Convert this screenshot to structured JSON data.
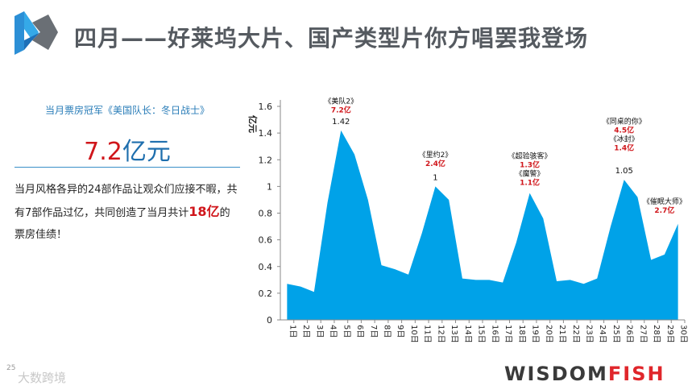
{
  "header": {
    "title": "四月——好莱坞大片、国产类型片你方唱罢我登场",
    "logo_icon": "w-chevron-logo-icon"
  },
  "colors": {
    "area": "#00a2e8",
    "accent_red": "#d0161b",
    "title_gray": "#555a60"
  },
  "summary": {
    "champion_label": "当月票房冠军《美国队长：冬日战士》",
    "champion_value": "7.2",
    "champion_unit": "亿元",
    "desc_part1": "当月风格各异的24部作品让观众们应接不暇，共有7部作品过亿，共同创造了当月共计",
    "desc_highlight": "18亿",
    "desc_part2": "的票房佳绩！"
  },
  "chart_data": {
    "type": "area",
    "ylabel": "亿元",
    "ylim": [
      0,
      1.6
    ],
    "yticks": [
      "0",
      "0.2",
      "0.4",
      "0.6",
      "0.8",
      "1",
      "1.2",
      "1.4",
      "1.6"
    ],
    "x": [
      "1日",
      "2日",
      "3日",
      "4日",
      "5日",
      "6日",
      "7日",
      "8日",
      "9日",
      "10日",
      "11日",
      "12日",
      "13日",
      "14日",
      "15日",
      "16日",
      "17日",
      "18日",
      "19日",
      "20日",
      "21日",
      "22日",
      "23日",
      "24日",
      "25日",
      "26日",
      "27日",
      "28日",
      "29日",
      "30日"
    ],
    "values": [
      0.27,
      0.25,
      0.21,
      0.88,
      1.42,
      1.24,
      0.9,
      0.41,
      0.38,
      0.34,
      0.65,
      1.0,
      0.9,
      0.31,
      0.3,
      0.3,
      0.28,
      0.58,
      0.95,
      0.76,
      0.29,
      0.3,
      0.27,
      0.31,
      0.7,
      1.05,
      0.92,
      0.45,
      0.49,
      0.72
    ],
    "peak_labels": [
      {
        "index": 4,
        "value": "1.42"
      },
      {
        "index": 11,
        "value": "1"
      },
      {
        "index": 25,
        "value": "1.05"
      }
    ],
    "annotations": [
      {
        "index": 4,
        "lines": [
          {
            "text": "《美队2》",
            "red": false
          },
          {
            "text": "7.2亿",
            "red": true
          }
        ],
        "at": 1.62
      },
      {
        "index": 11,
        "lines": [
          {
            "text": "《里约2》",
            "red": false
          },
          {
            "text": "2.4亿",
            "red": true
          }
        ],
        "at": 1.22
      },
      {
        "index": 18,
        "lines": [
          {
            "text": "《超验骇客》",
            "red": false
          },
          {
            "text": "1.3亿",
            "red": true
          },
          {
            "text": "《魔警》",
            "red": false
          },
          {
            "text": "1.1亿",
            "red": true
          }
        ],
        "at": 1.21
      },
      {
        "index": 25,
        "lines": [
          {
            "text": "《同桌的你》",
            "red": false
          },
          {
            "text": "4.5亿",
            "red": true
          },
          {
            "text": "《冰封》",
            "red": false
          },
          {
            "text": "1.4亿",
            "red": true
          }
        ],
        "at": 1.47
      },
      {
        "index": 28,
        "lines": [
          {
            "text": "《催眠大师》",
            "red": false
          },
          {
            "text": "2.7亿",
            "red": true
          }
        ],
        "at": 0.87
      }
    ]
  },
  "footer": {
    "page_number": "25",
    "brand_part1": "WISDOM",
    "brand_part2": "FISH",
    "watermark": "大数跨境"
  }
}
